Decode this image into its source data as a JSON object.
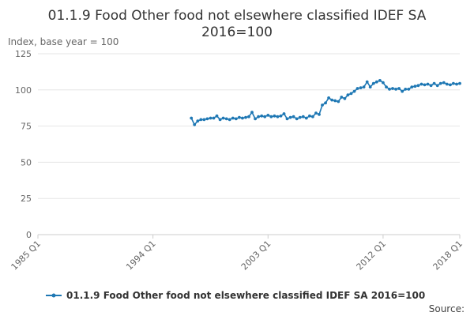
{
  "chart_data": {
    "type": "line",
    "title_lines": [
      "01.1.9 Food Other food not elsewhere classified IDEF SA",
      "2016=100"
    ],
    "ylabel": "Index, base year = 100",
    "xlabel": "",
    "x_ticks": [
      "1985 Q1",
      "1994 Q1",
      "2003 Q1",
      "2012 Q1",
      "2018 Q1"
    ],
    "x_range": [
      "1985 Q1",
      "2018 Q1"
    ],
    "y_ticks": [
      0,
      25,
      50,
      75,
      100,
      125
    ],
    "ylim": [
      0,
      125
    ],
    "grid": true,
    "legend_position": "bottom",
    "series": [
      {
        "name": "01.1.9 Food Other food not elsewhere classified IDEF SA 2016=100",
        "color": "#1f78b4",
        "x": [
          "1997 Q1",
          "1997 Q2",
          "1997 Q3",
          "1997 Q4",
          "1998 Q1",
          "1998 Q2",
          "1998 Q3",
          "1998 Q4",
          "1999 Q1",
          "1999 Q2",
          "1999 Q3",
          "1999 Q4",
          "2000 Q1",
          "2000 Q2",
          "2000 Q3",
          "2000 Q4",
          "2001 Q1",
          "2001 Q2",
          "2001 Q3",
          "2001 Q4",
          "2002 Q1",
          "2002 Q2",
          "2002 Q3",
          "2002 Q4",
          "2003 Q1",
          "2003 Q2",
          "2003 Q3",
          "2003 Q4",
          "2004 Q1",
          "2004 Q2",
          "2004 Q3",
          "2004 Q4",
          "2005 Q1",
          "2005 Q2",
          "2005 Q3",
          "2005 Q4",
          "2006 Q1",
          "2006 Q2",
          "2006 Q3",
          "2006 Q4",
          "2007 Q1",
          "2007 Q2",
          "2007 Q3",
          "2007 Q4",
          "2008 Q1",
          "2008 Q2",
          "2008 Q3",
          "2008 Q4",
          "2009 Q1",
          "2009 Q2",
          "2009 Q3",
          "2009 Q4",
          "2010 Q1",
          "2010 Q2",
          "2010 Q3",
          "2010 Q4",
          "2011 Q1",
          "2011 Q2",
          "2011 Q3",
          "2011 Q4",
          "2012 Q1",
          "2012 Q2",
          "2012 Q3",
          "2012 Q4",
          "2013 Q1",
          "2013 Q2",
          "2013 Q3",
          "2013 Q4",
          "2014 Q1",
          "2014 Q2",
          "2014 Q3",
          "2014 Q4",
          "2015 Q1",
          "2015 Q2",
          "2015 Q3",
          "2015 Q4",
          "2016 Q1",
          "2016 Q2",
          "2016 Q3",
          "2016 Q4",
          "2017 Q1",
          "2017 Q2",
          "2017 Q3",
          "2017 Q4",
          "2018 Q1"
        ],
        "values": [
          80.5,
          76,
          78.5,
          79.5,
          79.5,
          80,
          80.5,
          80.5,
          82,
          79.5,
          80.5,
          80,
          79.5,
          80.5,
          80,
          81,
          80.5,
          81,
          81.5,
          84.5,
          80,
          81.5,
          82,
          81.5,
          82.5,
          81.5,
          82,
          81.5,
          82,
          83.5,
          80,
          81,
          81.5,
          80,
          81,
          81.5,
          80.5,
          82,
          81.5,
          84,
          83,
          89.5,
          91,
          94.5,
          93,
          92.5,
          92,
          95,
          94,
          96.5,
          97.5,
          99,
          101,
          101.5,
          102,
          105.5,
          102,
          104.5,
          105.5,
          106.5,
          105,
          102,
          100.5,
          101,
          100.5,
          101,
          99,
          100.5,
          100.5,
          102,
          102.5,
          103,
          104,
          103.5,
          104,
          103,
          104.5,
          103,
          104.5,
          105,
          104,
          103.5,
          104.5,
          104,
          104.5
        ]
      }
    ]
  },
  "footer": {
    "source_label": "Source:"
  }
}
